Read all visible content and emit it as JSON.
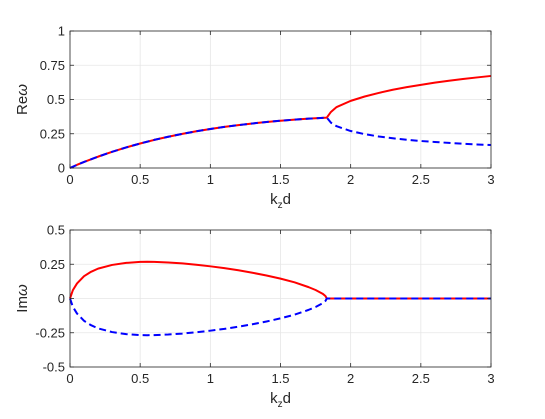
{
  "chart_data": [
    {
      "type": "line",
      "xlabel": {
        "base": "k",
        "sub": "z",
        "rest": "d"
      },
      "ylabel": {
        "base": "Re",
        "greek": "ω"
      },
      "xlim": [
        0,
        3
      ],
      "ylim": [
        0,
        1
      ],
      "xticks": [
        "0",
        "0.5",
        "1",
        "1.5",
        "2",
        "2.5",
        "3"
      ],
      "yticks": [
        "0",
        "0.25",
        "0.5",
        "0.75",
        "1"
      ],
      "grid": true,
      "legend": null,
      "series": [
        {
          "color": "#ff0000",
          "style": "solid",
          "x": [
            0,
            0.05,
            0.1,
            0.2,
            0.3,
            0.4,
            0.5,
            0.6,
            0.7,
            0.8,
            0.9,
            1.0,
            1.1,
            1.2,
            1.3,
            1.4,
            1.5,
            1.6,
            1.7,
            1.8,
            1.83,
            1.86,
            1.9,
            2.0,
            2.1,
            2.2,
            2.3,
            2.4,
            2.5,
            2.6,
            2.7,
            2.8,
            2.9,
            3.0
          ],
          "y": [
            0,
            0.023,
            0.044,
            0.083,
            0.118,
            0.15,
            0.179,
            0.205,
            0.228,
            0.249,
            0.268,
            0.285,
            0.3,
            0.313,
            0.325,
            0.336,
            0.345,
            0.353,
            0.36,
            0.366,
            0.368,
            0.41,
            0.445,
            0.49,
            0.522,
            0.548,
            0.571,
            0.59,
            0.607,
            0.623,
            0.637,
            0.65,
            0.661,
            0.672
          ]
        },
        {
          "color": "#0000ff",
          "style": "dashed",
          "x": [
            0,
            0.05,
            0.1,
            0.2,
            0.3,
            0.4,
            0.5,
            0.6,
            0.7,
            0.8,
            0.9,
            1.0,
            1.1,
            1.2,
            1.3,
            1.4,
            1.5,
            1.6,
            1.7,
            1.8,
            1.83,
            1.86,
            1.9,
            2.0,
            2.1,
            2.2,
            2.3,
            2.4,
            2.5,
            2.6,
            2.7,
            2.8,
            2.9,
            3.0
          ],
          "y": [
            0,
            0.023,
            0.044,
            0.083,
            0.118,
            0.15,
            0.179,
            0.205,
            0.228,
            0.249,
            0.268,
            0.285,
            0.3,
            0.313,
            0.325,
            0.336,
            0.345,
            0.353,
            0.36,
            0.366,
            0.368,
            0.33,
            0.305,
            0.27,
            0.247,
            0.23,
            0.217,
            0.206,
            0.197,
            0.19,
            0.183,
            0.177,
            0.172,
            0.168
          ]
        }
      ]
    },
    {
      "type": "line",
      "xlabel": {
        "base": "k",
        "sub": "z",
        "rest": "d"
      },
      "ylabel": {
        "base": "Im",
        "greek": "ω"
      },
      "xlim": [
        0,
        3
      ],
      "ylim": [
        -0.5,
        0.5
      ],
      "xticks": [
        "0",
        "0.5",
        "1",
        "1.5",
        "2",
        "2.5",
        "3"
      ],
      "yticks": [
        "-0.5",
        "-0.25",
        "0",
        "0.25",
        "0.5"
      ],
      "grid": true,
      "legend": null,
      "series": [
        {
          "color": "#ff0000",
          "style": "solid",
          "x": [
            0,
            0.02,
            0.05,
            0.1,
            0.15,
            0.2,
            0.3,
            0.4,
            0.5,
            0.55,
            0.6,
            0.7,
            0.8,
            0.9,
            1.0,
            1.1,
            1.2,
            1.3,
            1.4,
            1.5,
            1.6,
            1.7,
            1.75,
            1.8,
            1.82,
            1.83,
            2.0,
            2.5,
            3.0
          ],
          "y": [
            0,
            0.06,
            0.11,
            0.163,
            0.195,
            0.218,
            0.245,
            0.26,
            0.267,
            0.268,
            0.267,
            0.263,
            0.256,
            0.246,
            0.235,
            0.222,
            0.206,
            0.188,
            0.168,
            0.145,
            0.118,
            0.083,
            0.062,
            0.035,
            0.018,
            0,
            0,
            0,
            0
          ]
        },
        {
          "color": "#0000ff",
          "style": "dashed",
          "x": [
            0,
            0.02,
            0.05,
            0.1,
            0.15,
            0.2,
            0.3,
            0.4,
            0.5,
            0.55,
            0.6,
            0.7,
            0.8,
            0.9,
            1.0,
            1.1,
            1.2,
            1.3,
            1.4,
            1.5,
            1.6,
            1.7,
            1.75,
            1.8,
            1.82,
            1.83,
            2.0,
            2.5,
            3.0
          ],
          "y": [
            0,
            -0.06,
            -0.11,
            -0.163,
            -0.195,
            -0.218,
            -0.245,
            -0.26,
            -0.267,
            -0.268,
            -0.267,
            -0.263,
            -0.256,
            -0.246,
            -0.235,
            -0.222,
            -0.206,
            -0.188,
            -0.168,
            -0.145,
            -0.118,
            -0.083,
            -0.062,
            -0.035,
            -0.018,
            0,
            0,
            0,
            0
          ]
        }
      ]
    }
  ]
}
